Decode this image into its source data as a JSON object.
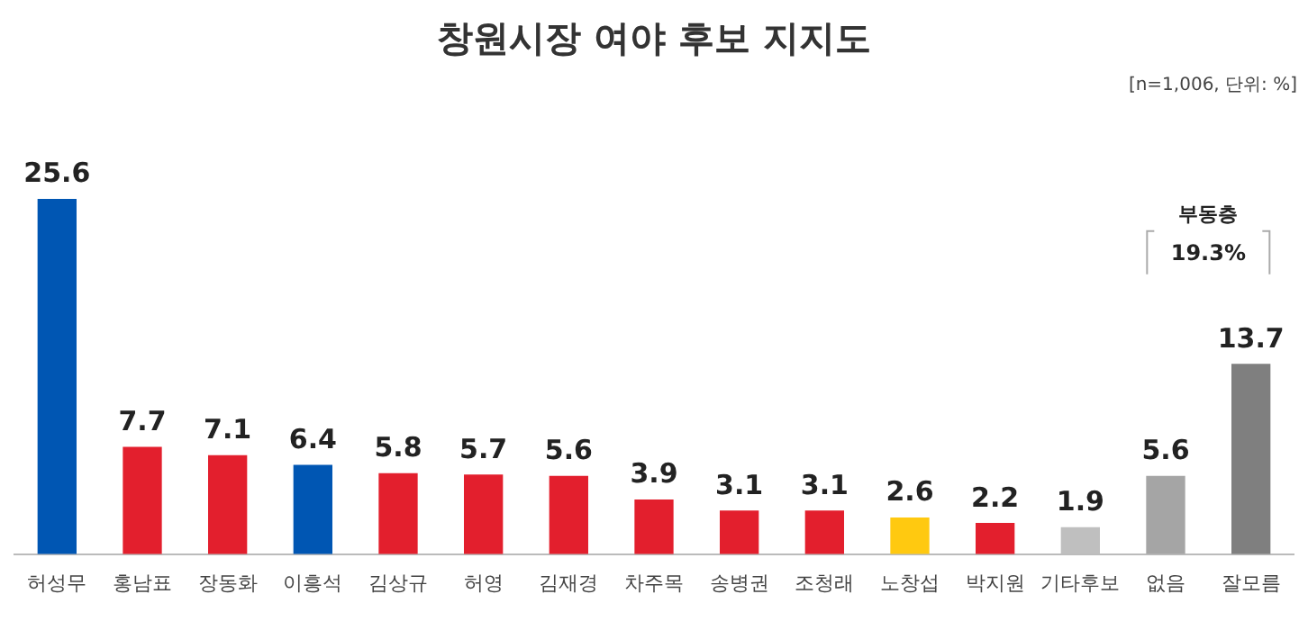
{
  "chart_data": {
    "type": "bar",
    "title": "창원시장 여야 후보 지지도",
    "categories": [
      "허성무",
      "홍남표",
      "장동화",
      "이흥석",
      "김상규",
      "허영",
      "김재경",
      "차주목",
      "송병권",
      "조청래",
      "노창섭",
      "박지원",
      "기타후보",
      "없음",
      "잘모름"
    ],
    "values": [
      25.6,
      7.7,
      7.1,
      6.4,
      5.8,
      5.7,
      5.6,
      3.9,
      3.1,
      3.1,
      2.6,
      2.2,
      1.9,
      5.6,
      13.7
    ],
    "colors": [
      "#0056b3",
      "#e31f2d",
      "#e31f2d",
      "#0056b3",
      "#e31f2d",
      "#e31f2d",
      "#e31f2d",
      "#e31f2d",
      "#e31f2d",
      "#e31f2d",
      "#ffc910",
      "#e31f2d",
      "#bfbfbf",
      "#a5a5a5",
      "#7f7f7f"
    ],
    "data_labels": true,
    "grid": false,
    "legend": false,
    "annotations": [
      "[n=1,006, 단위: %]",
      "부동층",
      "19.3%"
    ]
  }
}
